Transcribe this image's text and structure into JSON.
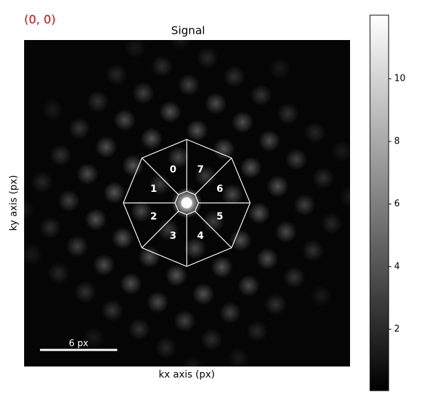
{
  "chart_data": {
    "type": "image",
    "annotation": "(0, 0)",
    "title": "Signal",
    "xlabel": "kx axis (px)",
    "ylabel": "ky axis (px)",
    "xlim": [
      0,
      25.3
    ],
    "scale_bar": {
      "value": 6,
      "label": "6 px"
    },
    "segments": [
      "0",
      "1",
      "2",
      "3",
      "4",
      "5",
      "6",
      "7"
    ],
    "colorbar": {
      "clim": [
        0.04,
        12.03
      ],
      "ticks": [
        2,
        4,
        6,
        8,
        10
      ],
      "cmap": "gray"
    },
    "annotation_color": "#ff0000"
  }
}
